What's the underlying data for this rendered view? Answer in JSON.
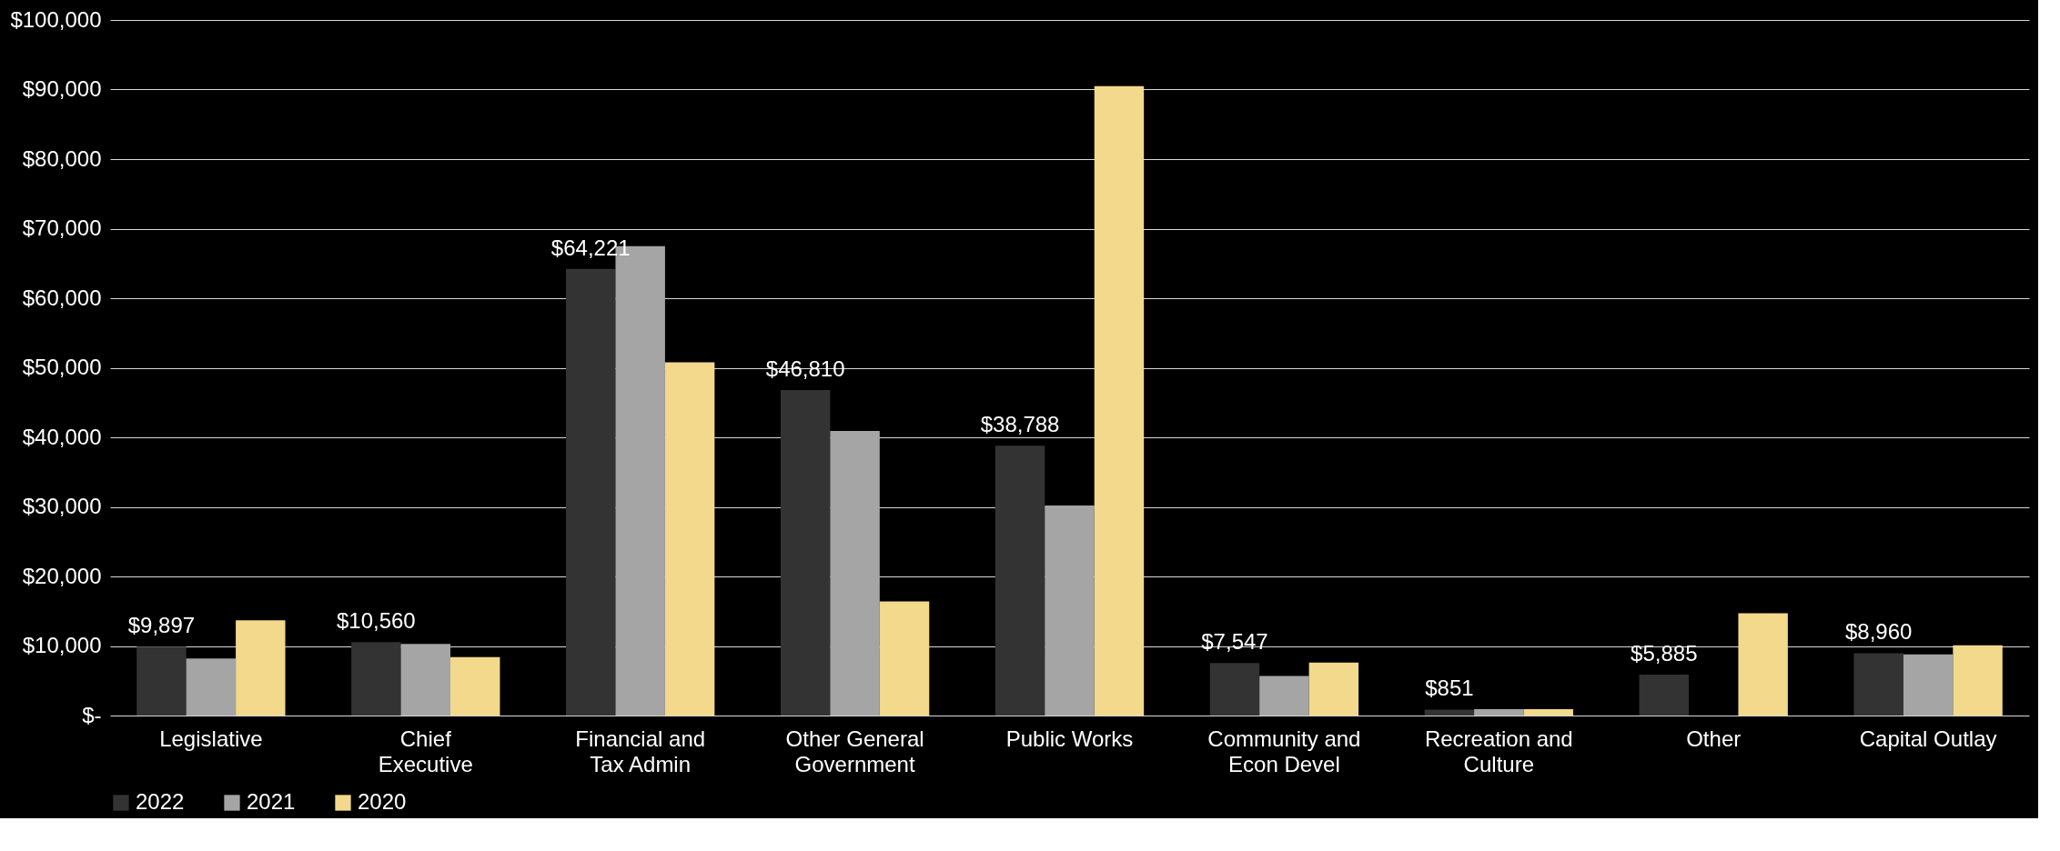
{
  "chart_data": {
    "type": "bar",
    "categories": [
      "Legislative",
      "Chief Executive",
      "Financial and Tax Admin",
      "Other General Government",
      "Public Works",
      "Community and Econ Devel",
      "Recreation and Culture",
      "Other",
      "Capital Outlay"
    ],
    "series": [
      {
        "name": "2022",
        "color": "#333333",
        "values": [
          9897,
          10560,
          64221,
          46810,
          38788,
          7547,
          851,
          5885,
          8960
        ],
        "value_labels": [
          "$9,897",
          "$10,560",
          "$64,221",
          "$46,810",
          "$38,788",
          "$7,547",
          "$851",
          "$5,885",
          "$8,960"
        ]
      },
      {
        "name": "2021",
        "color": "#a5a5a5",
        "values": [
          8200,
          10300,
          67500,
          40900,
          30200,
          5700,
          900,
          null,
          8800
        ]
      },
      {
        "name": "2020",
        "color": "#f2d98b",
        "values": [
          13700,
          8400,
          50800,
          16400,
          90500,
          7600,
          900,
          14700,
          10100
        ]
      }
    ],
    "ylim": [
      0,
      100000
    ],
    "yticks": [
      {
        "value": 0,
        "label": "$-"
      },
      {
        "value": 10000,
        "label": "$10,000"
      },
      {
        "value": 20000,
        "label": "$20,000"
      },
      {
        "value": 30000,
        "label": "$30,000"
      },
      {
        "value": 40000,
        "label": "$40,000"
      },
      {
        "value": 50000,
        "label": "$50,000"
      },
      {
        "value": 60000,
        "label": "$60,000"
      },
      {
        "value": 70000,
        "label": "$70,000"
      },
      {
        "value": 80000,
        "label": "$80,000"
      },
      {
        "value": 90000,
        "label": "$90,000"
      },
      {
        "value": 100000,
        "label": "$100,000"
      }
    ],
    "grid": "y",
    "legend": "bottom"
  }
}
